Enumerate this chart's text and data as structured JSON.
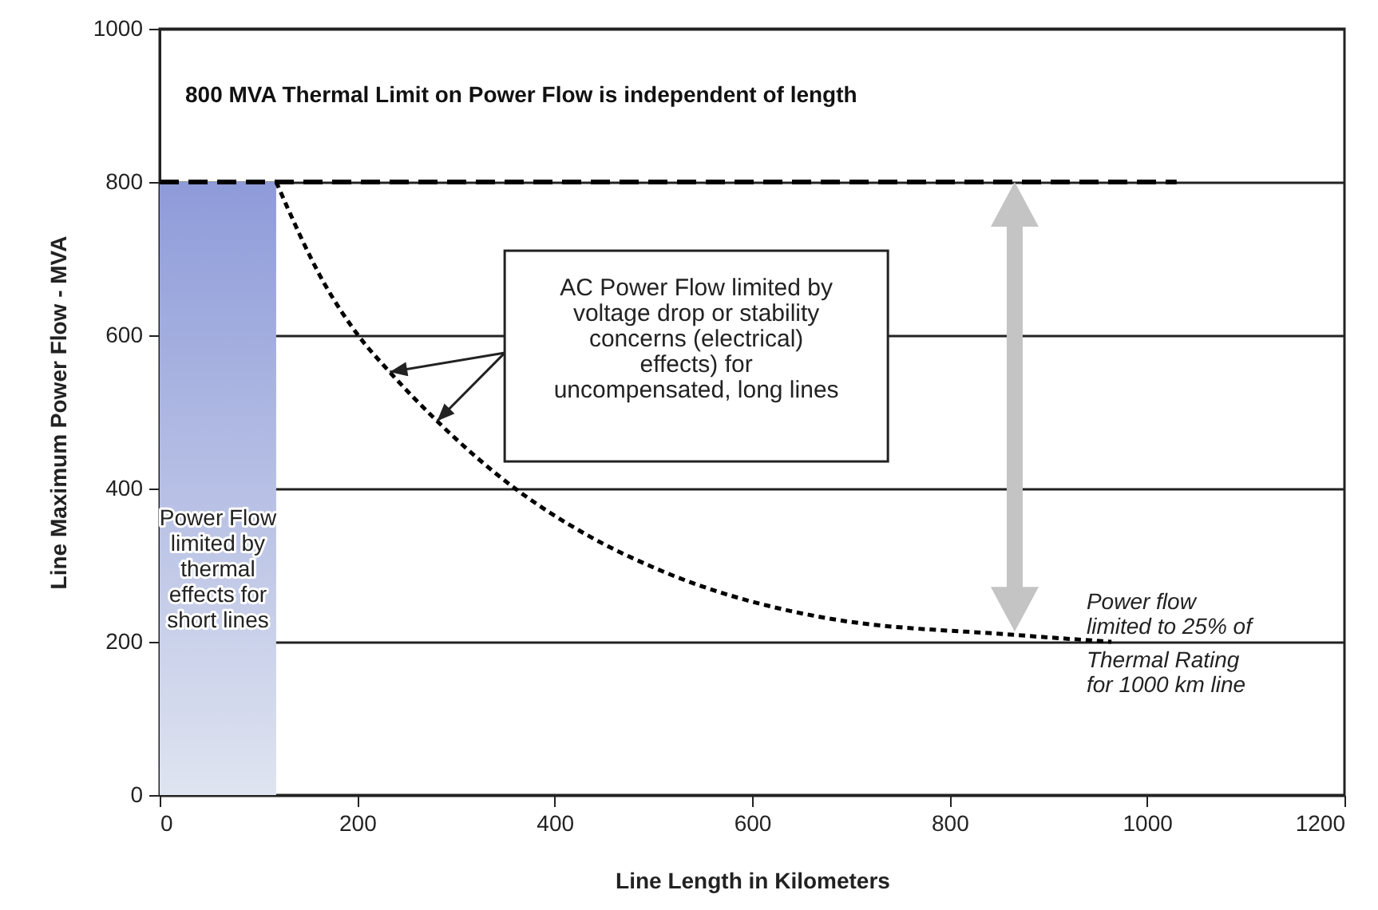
{
  "chart_data": {
    "type": "line",
    "xlabel": "Line Length in Kilometers",
    "ylabel": "Line Maximum Power Flow - MVA",
    "xlim": [
      0,
      1200
    ],
    "xticks": [
      0,
      200,
      400,
      600,
      800,
      1000,
      1200
    ],
    "ylim": [
      0,
      1000
    ],
    "yticks": [
      0,
      200,
      400,
      600,
      800,
      1000
    ],
    "grid": "y",
    "series": [
      {
        "type": "area",
        "name": "Power Flow limited by thermal effects for short lines",
        "color": "#8e9bd9",
        "x": [
          0,
          118
        ],
        "values": [
          800,
          800
        ]
      },
      {
        "name": "800 MVA Thermal Limit on Power Flow is independent of length",
        "color": "#000000",
        "line_style": "dashed",
        "x": [
          0,
          1030
        ],
        "values": [
          800,
          800
        ]
      },
      {
        "color": "#000000",
        "line_style": "dotted",
        "x": [
          118,
          167,
          201,
          233,
          281,
          360,
          432,
          502,
          675,
          866,
          964
        ],
        "values": [
          800,
          667,
          600,
          552,
          488,
          400,
          340,
          296,
          231,
          209,
          200
        ]
      }
    ],
    "annotations": [
      "AC Power Flow limited by voltage drop or stability concerns (electrical) effects) for uncompensated, long lines",
      "Power flow limited to 25% of Thermal Rating for 1000 km line"
    ]
  }
}
